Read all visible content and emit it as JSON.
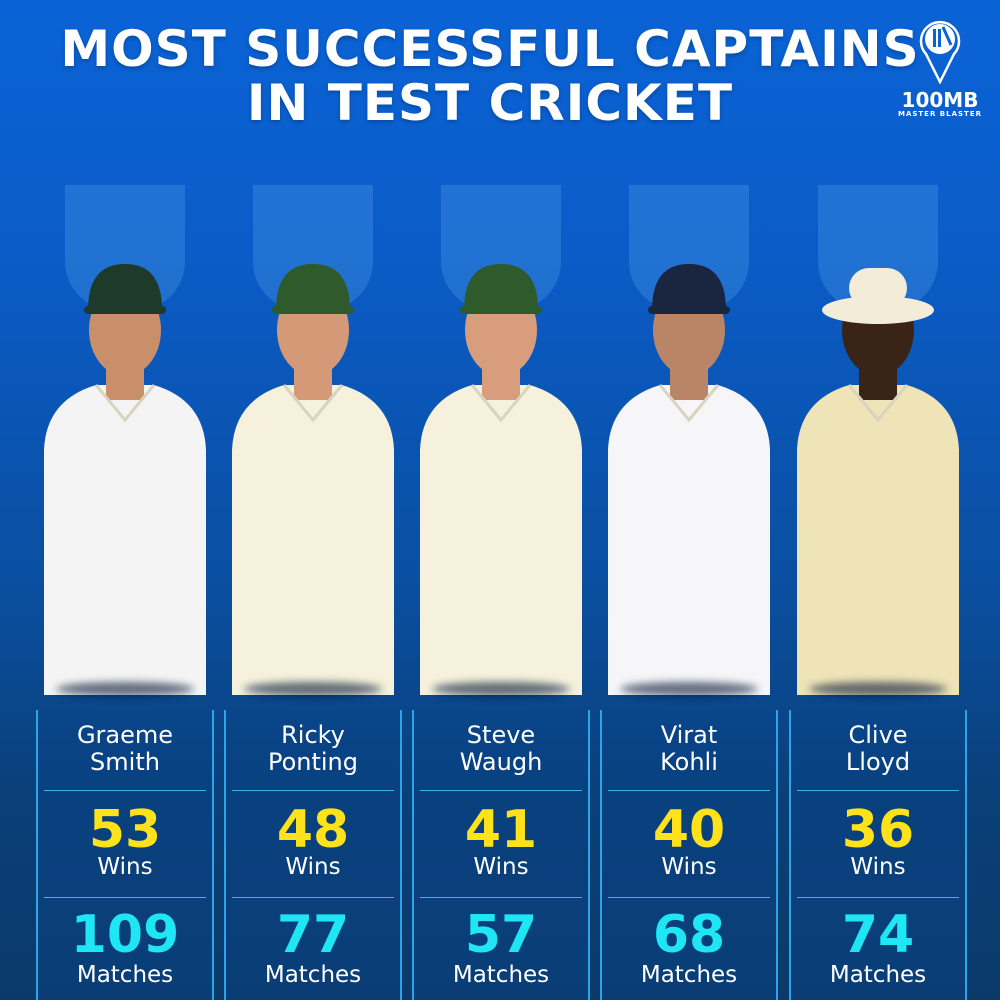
{
  "title_line1": "Most Successful Captains",
  "title_line2": "in Test Cricket",
  "logo": {
    "brand": "100MB",
    "sub": "MASTER BLASTER",
    "icon": "cricket-stumps-pin-icon"
  },
  "colors": {
    "wins": "#ffe21a",
    "matches": "#1ee6f5",
    "background": "#0a5cc8"
  },
  "wins_label": "Wins",
  "matches_label": "Matches",
  "captains": [
    {
      "first": "Graeme",
      "last": "Smith",
      "wins": "53",
      "matches": "109",
      "cap": "#1d3a2a",
      "shirt": "#f4f4f4",
      "skin": "#c98f6a"
    },
    {
      "first": "Ricky",
      "last": "Ponting",
      "wins": "48",
      "matches": "77",
      "cap": "#2e5a2c",
      "shirt": "#f5f1dc",
      "skin": "#d49a78"
    },
    {
      "first": "Steve",
      "last": "Waugh",
      "wins": "41",
      "matches": "57",
      "cap": "#2e5a2c",
      "shirt": "#f5f1dc",
      "skin": "#d79d7c"
    },
    {
      "first": "Virat",
      "last": "Kohli",
      "wins": "40",
      "matches": "68",
      "cap": "#1a2540",
      "shirt": "#f6f6f8",
      "skin": "#b98566"
    },
    {
      "first": "Clive",
      "last": "Lloyd",
      "wins": "36",
      "matches": "74",
      "cap": "#f2ecd8",
      "shirt": "#efe3b8",
      "skin": "#3a2418"
    }
  ]
}
